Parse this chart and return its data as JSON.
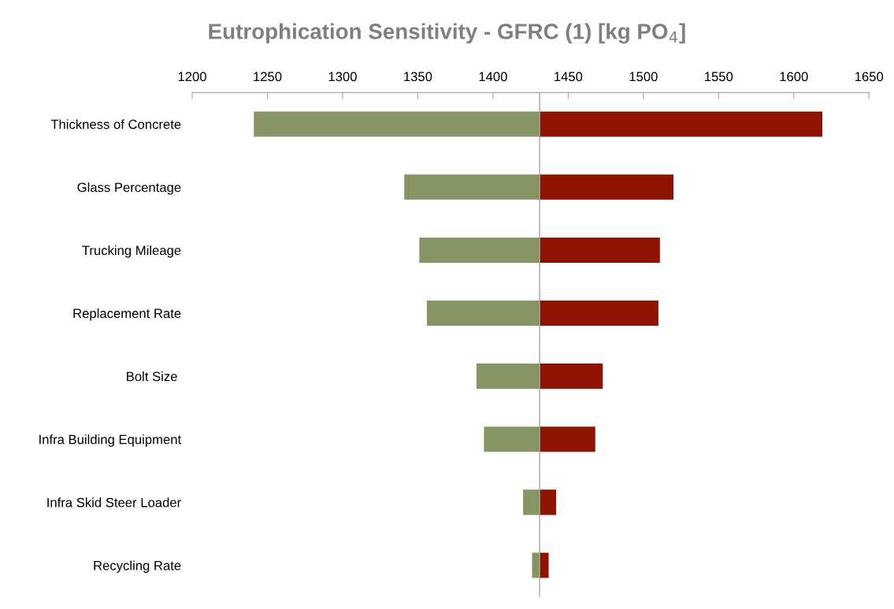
{
  "chart_data": {
    "type": "bar",
    "orientation": "horizontal",
    "title": "Eutrophication Sensitivity - GFRC (1) [kg PO$_{4}$]",
    "categories": [
      "Thickness of Concrete",
      "Glass Percentage",
      "Trucking Mileage",
      "Replacement Rate",
      "Bolt Size ",
      "Infra Building Equipment",
      "Infra Skid Steer Loader",
      "Recycling Rate"
    ],
    "series": [
      {
        "color": "#879565",
        "base": [
          1241,
          1341,
          1351,
          1356,
          1389,
          1394,
          1420,
          1426
        ],
        "values": [
          190,
          90,
          80,
          75,
          42,
          37,
          11,
          5
        ]
      },
      {
        "color": "#8e1300",
        "base": [
          1431,
          1431,
          1431,
          1431,
          1431,
          1431,
          1431,
          1431
        ],
        "values": [
          188,
          89,
          80,
          79,
          42,
          37,
          11,
          6
        ]
      }
    ],
    "xlim": [
      1200,
      1650
    ],
    "xticks": [
      1200,
      1250,
      1300,
      1350,
      1400,
      1450,
      1500,
      1550,
      1600,
      1650
    ],
    "ref_lines": [
      {
        "axis": "x",
        "value": 1431,
        "color": "#a6a6a6"
      }
    ],
    "grid": false,
    "legend": false
  }
}
